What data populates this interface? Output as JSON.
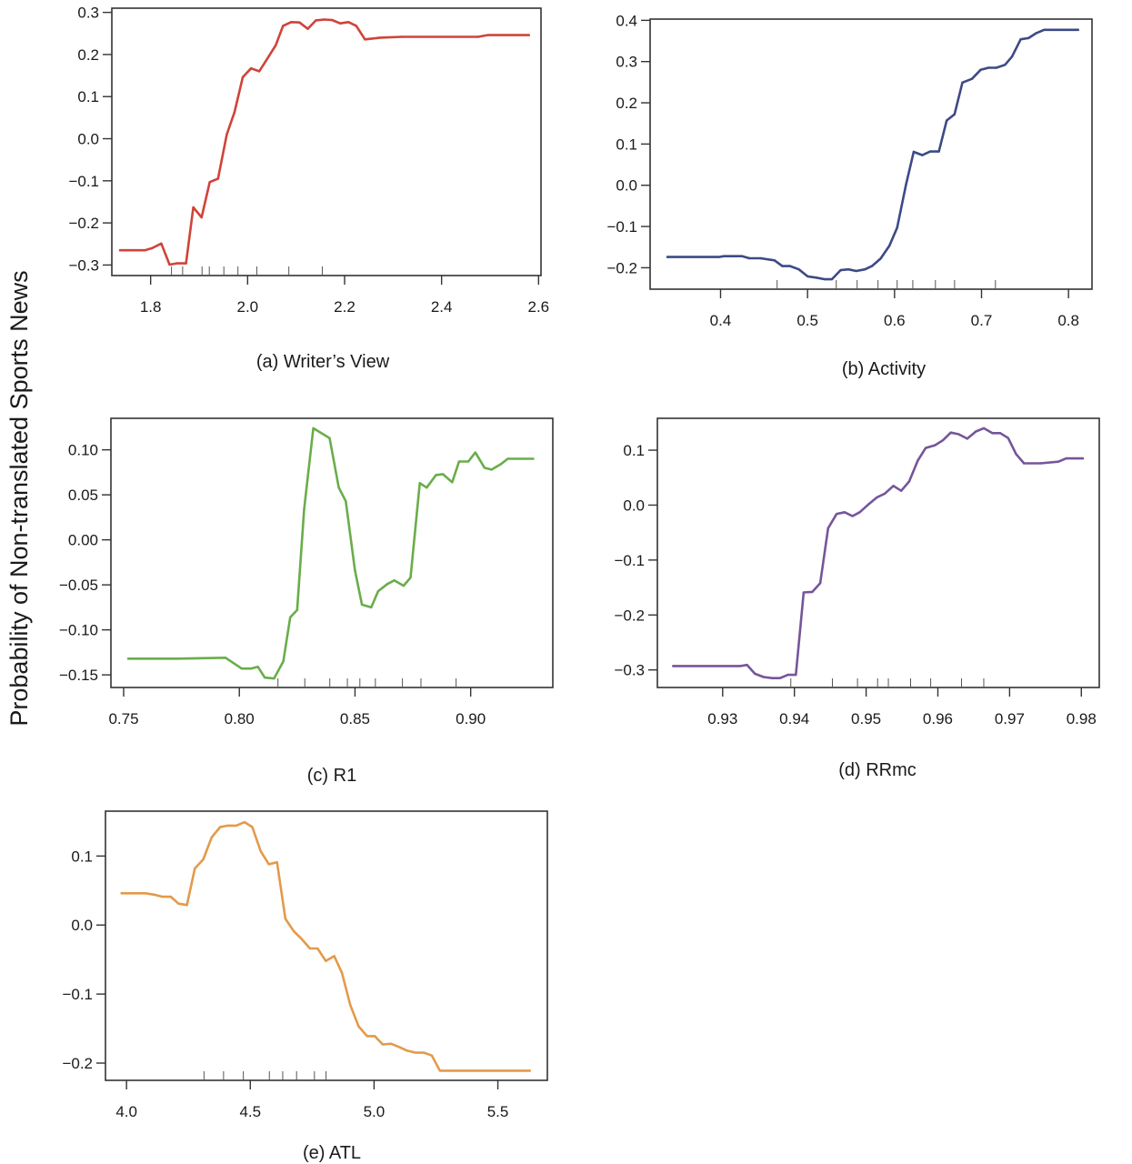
{
  "figure": {
    "shared_ylabel": "Probability of Non-translated Sports News"
  },
  "chart_data": [
    {
      "id": "a",
      "type": "line",
      "title": "(a) Writer’s View",
      "xlabel": "",
      "ylabel": "Probability of Non-translated Sports News",
      "color": "#D0433A",
      "grid": false,
      "xlim": [
        1.72,
        2.605
      ],
      "ylim": [
        -0.325,
        0.31
      ],
      "xticks": [
        1.8,
        2.0,
        2.2,
        2.4,
        2.6
      ],
      "xtick_labels": [
        "1.8",
        "2.0",
        "2.2",
        "2.4",
        "2.6"
      ],
      "yticks": [
        -0.3,
        -0.2,
        -0.1,
        0.0,
        0.1,
        0.2,
        0.3
      ],
      "ytick_labels": [
        "−0.3",
        "−0.2",
        "−0.1",
        "0.0",
        "0.1",
        "0.2",
        "0.3"
      ],
      "x": [
        1.737,
        1.788,
        1.803,
        1.822,
        1.839,
        1.854,
        1.873,
        1.888,
        1.905,
        1.922,
        1.939,
        1.957,
        1.973,
        1.99,
        2.007,
        2.024,
        2.039,
        2.058,
        2.073,
        2.09,
        2.107,
        2.124,
        2.141,
        2.158,
        2.174,
        2.191,
        2.208,
        2.224,
        2.242,
        2.274,
        2.318,
        2.475,
        2.495,
        2.58
      ],
      "y": [
        -0.265,
        -0.265,
        -0.26,
        -0.249,
        -0.299,
        -0.296,
        -0.296,
        -0.163,
        -0.187,
        -0.103,
        -0.095,
        0.01,
        0.063,
        0.146,
        0.167,
        0.16,
        0.187,
        0.222,
        0.268,
        0.277,
        0.276,
        0.261,
        0.281,
        0.283,
        0.282,
        0.274,
        0.277,
        0.268,
        0.236,
        0.24,
        0.242,
        0.242,
        0.246,
        0.246
      ],
      "rug": [
        1.843,
        1.866,
        1.906,
        1.921,
        1.951,
        1.98,
        2.019,
        2.085,
        2.154
      ]
    },
    {
      "id": "b",
      "type": "line",
      "title": "(b) Activity",
      "xlabel": "",
      "ylabel": "",
      "color": "#3D4A85",
      "grid": false,
      "xlim": [
        0.319,
        0.827
      ],
      "ylim": [
        -0.252,
        0.403
      ],
      "xticks": [
        0.4,
        0.5,
        0.6,
        0.7,
        0.8
      ],
      "xtick_labels": [
        "0.4",
        "0.5",
        "0.6",
        "0.7",
        "0.8"
      ],
      "yticks": [
        -0.2,
        -0.1,
        0.0,
        0.1,
        0.2,
        0.3,
        0.4
      ],
      "ytick_labels": [
        "−0.2",
        "−0.1",
        "0.0",
        "0.1",
        "0.2",
        "0.3",
        "0.4"
      ],
      "x": [
        0.339,
        0.398,
        0.404,
        0.425,
        0.433,
        0.446,
        0.462,
        0.471,
        0.48,
        0.49,
        0.5,
        0.51,
        0.52,
        0.528,
        0.538,
        0.547,
        0.556,
        0.566,
        0.574,
        0.584,
        0.594,
        0.603,
        0.613,
        0.622,
        0.632,
        0.641,
        0.651,
        0.66,
        0.669,
        0.678,
        0.689,
        0.699,
        0.708,
        0.717,
        0.727,
        0.735,
        0.745,
        0.754,
        0.763,
        0.772,
        0.811
      ],
      "y": [
        -0.174,
        -0.174,
        -0.172,
        -0.172,
        -0.177,
        -0.177,
        -0.182,
        -0.196,
        -0.196,
        -0.204,
        -0.221,
        -0.224,
        -0.228,
        -0.228,
        -0.206,
        -0.204,
        -0.208,
        -0.204,
        -0.196,
        -0.178,
        -0.147,
        -0.103,
        0.0,
        0.081,
        0.073,
        0.082,
        0.082,
        0.157,
        0.172,
        0.249,
        0.258,
        0.28,
        0.285,
        0.285,
        0.292,
        0.312,
        0.354,
        0.357,
        0.369,
        0.377,
        0.377
      ],
      "rug": [
        0.465,
        0.533,
        0.557,
        0.581,
        0.603,
        0.621,
        0.647,
        0.669,
        0.716
      ]
    },
    {
      "id": "c",
      "type": "line",
      "title": "(c) R1",
      "xlabel": "",
      "ylabel": "Probability of Non-translated Sports News",
      "color": "#6AAD4A",
      "grid": false,
      "xlim": [
        0.7445,
        0.9355
      ],
      "ylim": [
        -0.164,
        0.135
      ],
      "xticks": [
        0.75,
        0.8,
        0.85,
        0.9
      ],
      "xtick_labels": [
        "0.75",
        "0.80",
        "0.85",
        "0.90"
      ],
      "yticks": [
        -0.15,
        -0.1,
        -0.05,
        0.0,
        0.05,
        0.1
      ],
      "ytick_labels": [
        "−0.15",
        "−0.10",
        "−0.05",
        "0.00",
        "0.05",
        "0.10"
      ],
      "x": [
        0.752,
        0.773,
        0.794,
        0.797,
        0.801,
        0.805,
        0.808,
        0.811,
        0.815,
        0.819,
        0.822,
        0.825,
        0.828,
        0.832,
        0.839,
        0.843,
        0.846,
        0.85,
        0.853,
        0.857,
        0.86,
        0.864,
        0.867,
        0.871,
        0.874,
        0.878,
        0.881,
        0.885,
        0.888,
        0.892,
        0.895,
        0.899,
        0.902,
        0.906,
        0.909,
        0.913,
        0.916,
        0.927
      ],
      "y": [
        -0.132,
        -0.132,
        -0.131,
        -0.136,
        -0.143,
        -0.143,
        -0.141,
        -0.153,
        -0.154,
        -0.135,
        -0.086,
        -0.078,
        0.034,
        0.124,
        0.113,
        0.058,
        0.043,
        -0.034,
        -0.072,
        -0.075,
        -0.057,
        -0.049,
        -0.045,
        -0.051,
        -0.042,
        0.063,
        0.058,
        0.072,
        0.073,
        0.064,
        0.087,
        0.087,
        0.097,
        0.08,
        0.078,
        0.084,
        0.09,
        0.09
      ],
      "rug": [
        0.8167,
        0.8283,
        0.8391,
        0.8467,
        0.8521,
        0.8588,
        0.8705,
        0.8785,
        0.8937
      ]
    },
    {
      "id": "d",
      "type": "line",
      "title": "(d) RRmc",
      "xlabel": "",
      "ylabel": "",
      "color": "#76559A",
      "grid": false,
      "xlim": [
        0.9209,
        0.9825
      ],
      "ylim": [
        -0.332,
        0.158
      ],
      "xticks": [
        0.93,
        0.94,
        0.95,
        0.96,
        0.97,
        0.98
      ],
      "xtick_labels": [
        "0.93",
        "0.94",
        "0.95",
        "0.96",
        "0.97",
        "0.98"
      ],
      "yticks": [
        -0.3,
        -0.2,
        -0.1,
        0.0,
        0.1
      ],
      "ytick_labels": [
        "−0.3",
        "−0.2",
        "−0.1",
        "0.0",
        "0.1"
      ],
      "x": [
        0.9231,
        0.9325,
        0.9334,
        0.9345,
        0.9357,
        0.9369,
        0.938,
        0.9391,
        0.9402,
        0.9413,
        0.9425,
        0.9436,
        0.9447,
        0.9459,
        0.947,
        0.9481,
        0.9491,
        0.9503,
        0.9515,
        0.9526,
        0.9538,
        0.9549,
        0.956,
        0.9572,
        0.9583,
        0.9596,
        0.9607,
        0.9618,
        0.9629,
        0.9641,
        0.9653,
        0.9664,
        0.9676,
        0.9687,
        0.9698,
        0.9709,
        0.972,
        0.9743,
        0.9768,
        0.9779,
        0.9802
      ],
      "y": [
        -0.293,
        -0.293,
        -0.291,
        -0.307,
        -0.313,
        -0.315,
        -0.315,
        -0.309,
        -0.309,
        -0.159,
        -0.158,
        -0.142,
        -0.042,
        -0.016,
        -0.013,
        -0.02,
        -0.013,
        0.001,
        0.014,
        0.021,
        0.035,
        0.026,
        0.043,
        0.081,
        0.104,
        0.109,
        0.118,
        0.132,
        0.129,
        0.121,
        0.134,
        0.14,
        0.131,
        0.131,
        0.122,
        0.093,
        0.076,
        0.076,
        0.079,
        0.085,
        0.085
      ],
      "rug": [
        0.9395,
        0.9453,
        0.9488,
        0.9516,
        0.9531,
        0.9562,
        0.959,
        0.9633,
        0.9664
      ]
    },
    {
      "id": "e",
      "type": "line",
      "title": "(e) ATL",
      "xlabel": "",
      "ylabel": "Probability of Non-translated Sports News",
      "color": "#E39A4A",
      "grid": false,
      "xlim": [
        3.915,
        5.7
      ],
      "ylim": [
        -0.225,
        0.165
      ],
      "xticks": [
        4.0,
        4.5,
        5.0,
        5.5
      ],
      "xtick_labels": [
        "4.0",
        "4.5",
        "5.0",
        "5.5"
      ],
      "yticks": [
        -0.2,
        -0.1,
        0.0,
        0.1
      ],
      "ytick_labels": [
        "−0.2",
        "−0.1",
        "0.0",
        "0.1"
      ],
      "x": [
        3.98,
        4.077,
        4.111,
        4.145,
        4.179,
        4.21,
        4.244,
        4.276,
        4.31,
        4.344,
        4.378,
        4.409,
        4.443,
        4.477,
        4.508,
        4.542,
        4.575,
        4.608,
        4.642,
        4.676,
        4.707,
        4.741,
        4.772,
        4.805,
        4.839,
        4.87,
        4.904,
        4.938,
        4.972,
        5.003,
        5.035,
        5.069,
        5.103,
        5.134,
        5.168,
        5.202,
        5.233,
        5.266,
        5.629
      ],
      "y": [
        0.046,
        0.046,
        0.044,
        0.041,
        0.041,
        0.031,
        0.029,
        0.082,
        0.095,
        0.127,
        0.142,
        0.144,
        0.144,
        0.149,
        0.142,
        0.107,
        0.088,
        0.091,
        0.009,
        -0.009,
        -0.02,
        -0.034,
        -0.034,
        -0.052,
        -0.045,
        -0.069,
        -0.116,
        -0.147,
        -0.161,
        -0.161,
        -0.173,
        -0.172,
        -0.177,
        -0.182,
        -0.185,
        -0.185,
        -0.189,
        -0.211,
        -0.211
      ],
      "rug": [
        4.313,
        4.392,
        4.472,
        4.577,
        4.631,
        4.687,
        4.759,
        4.806
      ]
    }
  ]
}
